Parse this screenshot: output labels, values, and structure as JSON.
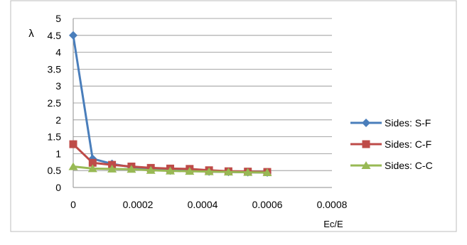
{
  "chart_data": {
    "type": "line",
    "title": "",
    "xlabel": "Ec/E",
    "ylabel": "λ",
    "xlim": [
      0,
      0.0008
    ],
    "ylim": [
      0,
      5
    ],
    "x_ticks": [
      {
        "value": 0,
        "label": "0"
      },
      {
        "value": 0.0002,
        "label": "0.0002"
      },
      {
        "value": 0.0004,
        "label": "0.0004"
      },
      {
        "value": 0.0006,
        "label": "0.0006"
      },
      {
        "value": 0.0008,
        "label": "0.0008"
      }
    ],
    "y_ticks": [
      {
        "value": 0,
        "label": "0"
      },
      {
        "value": 0.5,
        "label": "0.5"
      },
      {
        "value": 1,
        "label": "1"
      },
      {
        "value": 1.5,
        "label": "1.5"
      },
      {
        "value": 2,
        "label": "2"
      },
      {
        "value": 2.5,
        "label": "2.5"
      },
      {
        "value": 3,
        "label": "3"
      },
      {
        "value": 3.5,
        "label": "3.5"
      },
      {
        "value": 4,
        "label": "4"
      },
      {
        "value": 4.5,
        "label": "4.5"
      },
      {
        "value": 5,
        "label": "5"
      }
    ],
    "grid": "horizontal",
    "legend_position": "right",
    "series": [
      {
        "name": "Sides: S-F",
        "color": "#4a7ebb",
        "marker": "diamond",
        "x": [
          0,
          6e-05,
          0.00012,
          0.00018,
          0.00024,
          0.0003,
          0.00036,
          0.00042,
          0.00048,
          0.00054,
          0.0006
        ],
        "values": [
          4.5,
          0.85,
          0.7,
          0.6,
          0.55,
          0.5,
          0.5,
          0.47,
          0.46,
          0.45,
          0.44
        ]
      },
      {
        "name": "Sides: C-F",
        "color": "#be4b48",
        "marker": "square",
        "x": [
          0,
          6e-05,
          0.00012,
          0.00018,
          0.00024,
          0.0003,
          0.00036,
          0.00042,
          0.00048,
          0.00054,
          0.0006
        ],
        "values": [
          1.28,
          0.73,
          0.67,
          0.62,
          0.58,
          0.56,
          0.55,
          0.51,
          0.48,
          0.47,
          0.46
        ]
      },
      {
        "name": "Sides: C-C",
        "color": "#98b954",
        "marker": "triangle",
        "x": [
          0,
          6e-05,
          0.00012,
          0.00018,
          0.00024,
          0.0003,
          0.00036,
          0.00042,
          0.00048,
          0.00054,
          0.0006
        ],
        "values": [
          0.62,
          0.56,
          0.55,
          0.54,
          0.51,
          0.49,
          0.48,
          0.47,
          0.46,
          0.45,
          0.44
        ]
      }
    ]
  }
}
